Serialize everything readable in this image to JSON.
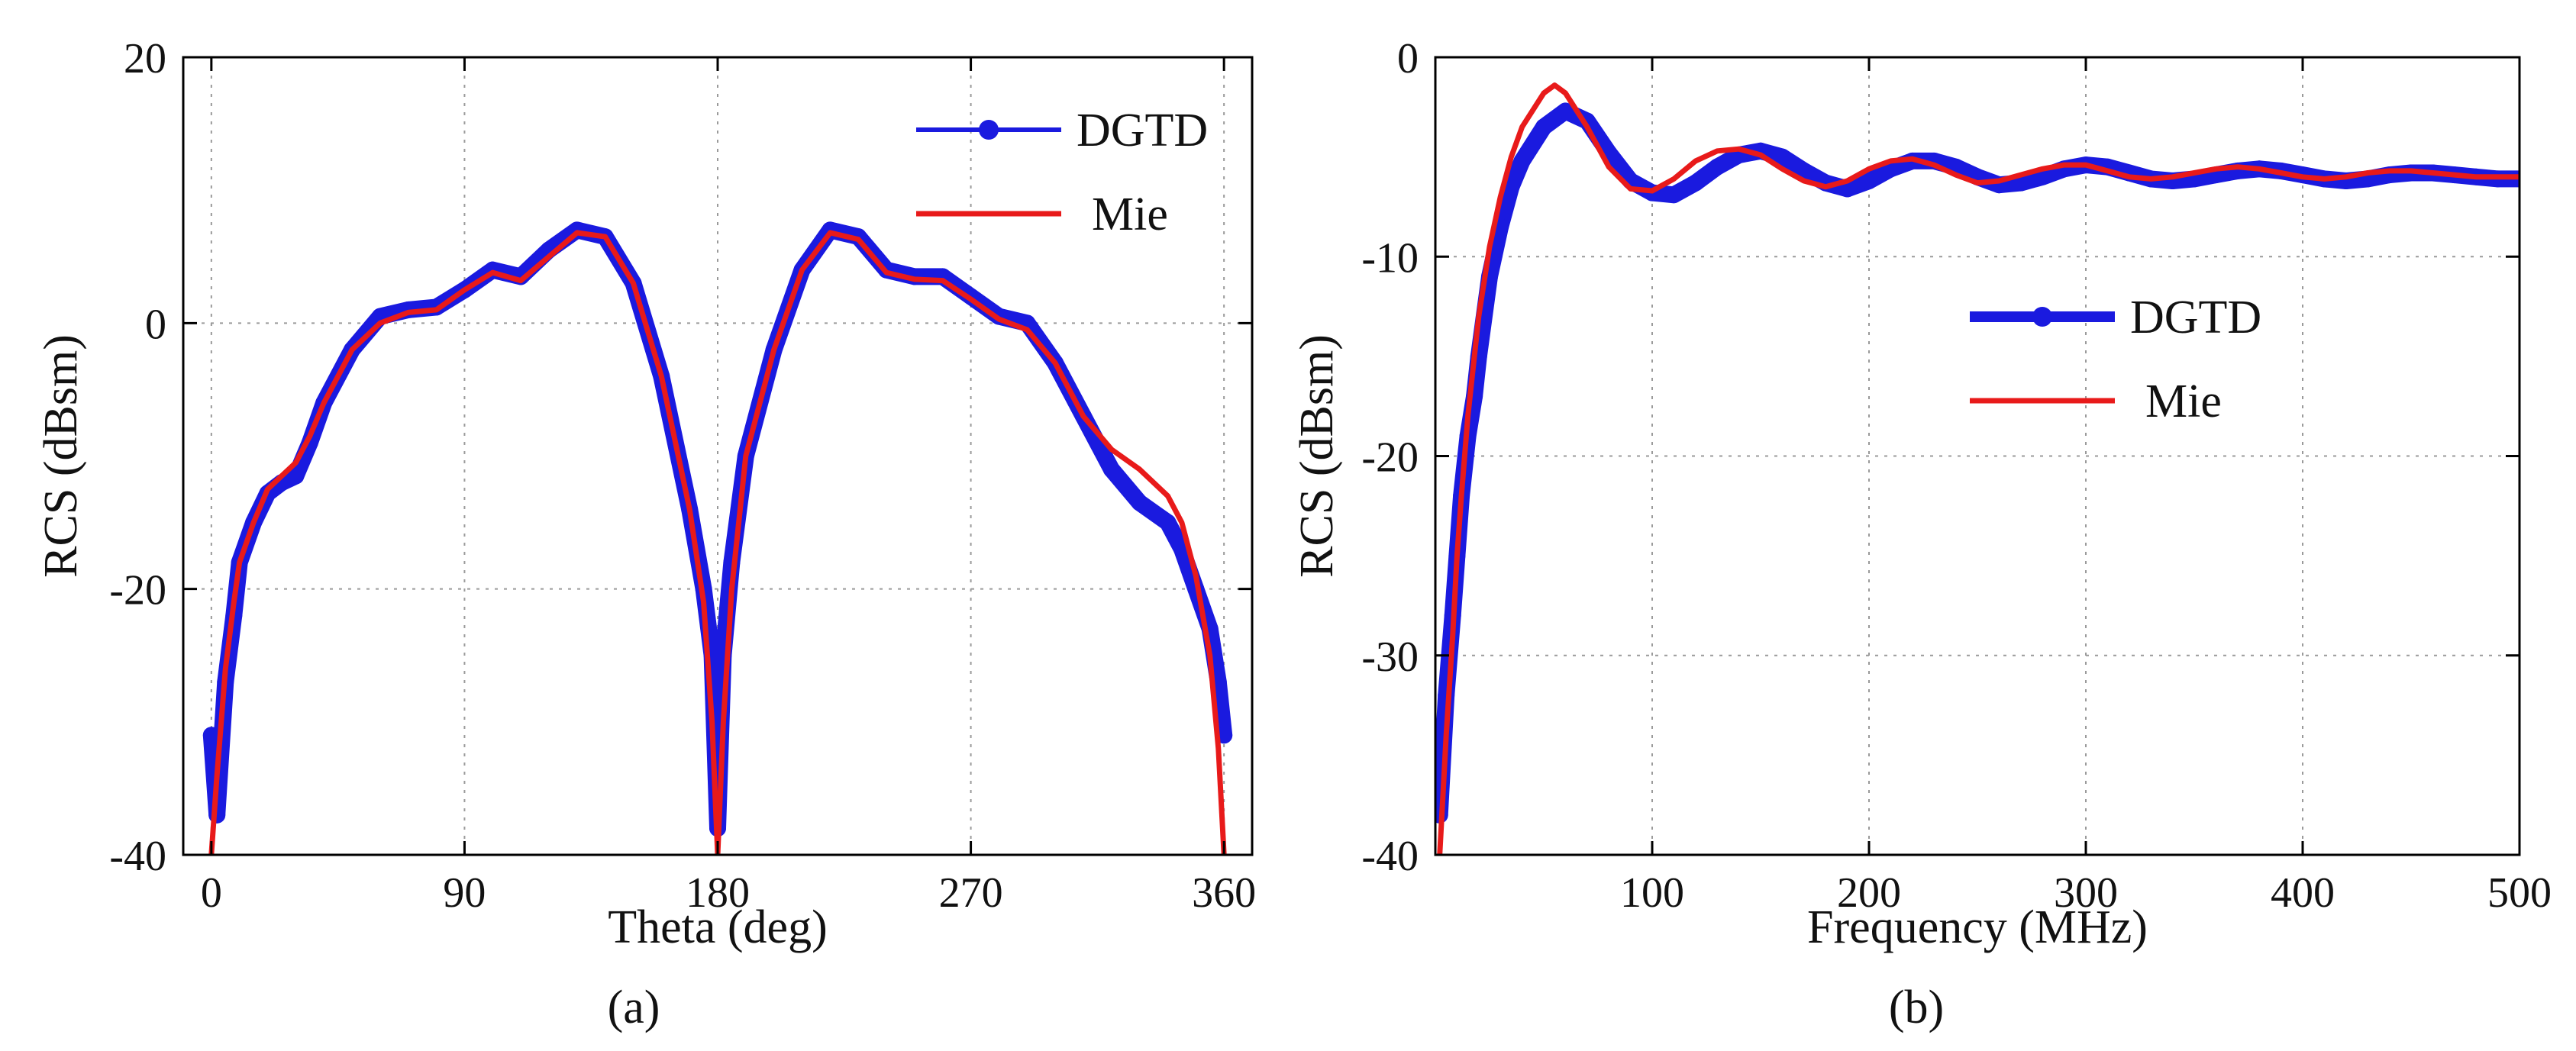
{
  "chart_data": [
    {
      "type": "line",
      "panel_label": "(a)",
      "xlabel": "Theta (deg)",
      "ylabel": "RCS (dBsm)",
      "xlim": [
        -10,
        370
      ],
      "ylim": [
        -40,
        20
      ],
      "xticks": [
        0,
        90,
        180,
        270,
        360
      ],
      "yticks": [
        -40,
        -20,
        0,
        20
      ],
      "xtick_labels": [
        "0",
        "90",
        "180",
        "270",
        "360"
      ],
      "ytick_labels": [
        "-40",
        "-20",
        "0",
        "20"
      ],
      "legend_position": "top-right",
      "series": [
        {
          "name": "DGTD",
          "color": "#1a1adf",
          "marker": "circle",
          "x": [
            0,
            2,
            5,
            8,
            10,
            15,
            20,
            25,
            30,
            35,
            40,
            50,
            60,
            70,
            80,
            90,
            100,
            110,
            120,
            130,
            140,
            150,
            160,
            170,
            175,
            178,
            180,
            182,
            185,
            190,
            200,
            210,
            220,
            230,
            240,
            250,
            260,
            270,
            280,
            290,
            300,
            310,
            320,
            330,
            340,
            345,
            350,
            355,
            358,
            360
          ],
          "y": [
            -31,
            -37,
            -27,
            -22,
            -18,
            -15,
            -12.8,
            -12,
            -11.5,
            -9,
            -6,
            -2,
            0.5,
            1,
            1.2,
            2.5,
            4,
            3.5,
            5.5,
            7,
            6.5,
            3,
            -4,
            -14,
            -20,
            -25,
            -38,
            -25,
            -18,
            -10,
            -2,
            4,
            7,
            6.5,
            4,
            3.5,
            3.5,
            2,
            0.5,
            0,
            -3,
            -7,
            -11,
            -13.5,
            -15,
            -17,
            -20,
            -23,
            -27,
            -31
          ]
        },
        {
          "name": "Mie",
          "color": "#e81a1a",
          "marker": "none",
          "x": [
            0,
            2,
            5,
            8,
            10,
            15,
            20,
            25,
            30,
            35,
            40,
            50,
            60,
            70,
            80,
            90,
            100,
            110,
            120,
            130,
            140,
            150,
            160,
            170,
            175,
            178,
            180,
            182,
            185,
            190,
            200,
            210,
            220,
            230,
            240,
            250,
            260,
            270,
            280,
            290,
            300,
            310,
            320,
            330,
            340,
            345,
            350,
            355,
            358,
            360
          ],
          "y": [
            -40,
            -34,
            -26,
            -21,
            -18,
            -15,
            -12.5,
            -11.5,
            -10.5,
            -8.5,
            -6,
            -2,
            0,
            0.8,
            1,
            2.5,
            3.8,
            3.2,
            5,
            6.8,
            6.5,
            3,
            -4,
            -14,
            -21,
            -30,
            -40,
            -30,
            -20,
            -10,
            -2,
            4,
            6.8,
            6.3,
            3.8,
            3.3,
            3.2,
            1.8,
            0.3,
            -0.5,
            -3,
            -7,
            -9.5,
            -11,
            -13,
            -15,
            -19,
            -25,
            -32,
            -40
          ]
        }
      ]
    },
    {
      "type": "line",
      "panel_label": "(b)",
      "xlabel": "Frequency (MHz)",
      "ylabel": "RCS (dBsm)",
      "xlim": [
        0,
        500
      ],
      "ylim": [
        -40,
        0
      ],
      "xticks": [
        100,
        200,
        300,
        400,
        500
      ],
      "yticks": [
        -40,
        -30,
        -20,
        -10,
        0
      ],
      "xtick_labels": [
        "100",
        "200",
        "300",
        "400",
        "500"
      ],
      "ytick_labels": [
        "-40",
        "-30",
        "-20",
        "-10",
        "0"
      ],
      "legend_position": "center-right",
      "series": [
        {
          "name": "DGTD",
          "color": "#1a1adf",
          "marker": "circle",
          "x": [
            2,
            5,
            8,
            10,
            12,
            15,
            18,
            20,
            25,
            30,
            35,
            40,
            50,
            60,
            70,
            80,
            90,
            100,
            110,
            120,
            130,
            140,
            150,
            160,
            170,
            180,
            190,
            200,
            210,
            220,
            230,
            240,
            250,
            260,
            270,
            280,
            290,
            300,
            310,
            320,
            330,
            340,
            350,
            360,
            370,
            380,
            390,
            400,
            410,
            420,
            430,
            440,
            450,
            460,
            470,
            480,
            490,
            500
          ],
          "y": [
            -38,
            -32,
            -28,
            -25,
            -22,
            -19,
            -17,
            -15,
            -11,
            -8.5,
            -6.5,
            -5.2,
            -3.5,
            -2.7,
            -3.2,
            -4.8,
            -6.2,
            -6.8,
            -6.9,
            -6.3,
            -5.5,
            -4.9,
            -4.7,
            -5.0,
            -5.7,
            -6.3,
            -6.6,
            -6.2,
            -5.6,
            -5.2,
            -5.2,
            -5.5,
            -6.0,
            -6.4,
            -6.3,
            -6.0,
            -5.6,
            -5.4,
            -5.5,
            -5.8,
            -6.1,
            -6.2,
            -6.1,
            -5.9,
            -5.7,
            -5.6,
            -5.7,
            -5.9,
            -6.1,
            -6.2,
            -6.1,
            -5.9,
            -5.8,
            -5.8,
            -5.9,
            -6.0,
            -6.1,
            -6.1
          ]
        },
        {
          "name": "Mie",
          "color": "#e81a1a",
          "marker": "none",
          "x": [
            2,
            5,
            8,
            10,
            12,
            15,
            18,
            20,
            25,
            30,
            35,
            40,
            50,
            55,
            60,
            70,
            80,
            90,
            100,
            110,
            120,
            130,
            140,
            150,
            160,
            170,
            180,
            190,
            200,
            210,
            220,
            230,
            240,
            250,
            260,
            270,
            280,
            290,
            300,
            310,
            320,
            330,
            340,
            350,
            360,
            370,
            380,
            390,
            400,
            410,
            420,
            430,
            440,
            450,
            460,
            470,
            480,
            490,
            500
          ],
          "y": [
            -40,
            -34,
            -29,
            -25,
            -22,
            -18,
            -15,
            -13,
            -9.5,
            -7,
            -5,
            -3.5,
            -1.8,
            -1.4,
            -1.8,
            -3.5,
            -5.5,
            -6.6,
            -6.7,
            -6.1,
            -5.2,
            -4.7,
            -4.6,
            -4.9,
            -5.6,
            -6.2,
            -6.5,
            -6.2,
            -5.6,
            -5.2,
            -5.1,
            -5.4,
            -5.9,
            -6.3,
            -6.2,
            -5.9,
            -5.6,
            -5.4,
            -5.4,
            -5.7,
            -6.0,
            -6.1,
            -6.0,
            -5.8,
            -5.6,
            -5.5,
            -5.6,
            -5.8,
            -6.0,
            -6.1,
            -6.0,
            -5.8,
            -5.7,
            -5.7,
            -5.8,
            -5.9,
            -6.0,
            -6.0,
            -6.0
          ]
        }
      ]
    }
  ]
}
